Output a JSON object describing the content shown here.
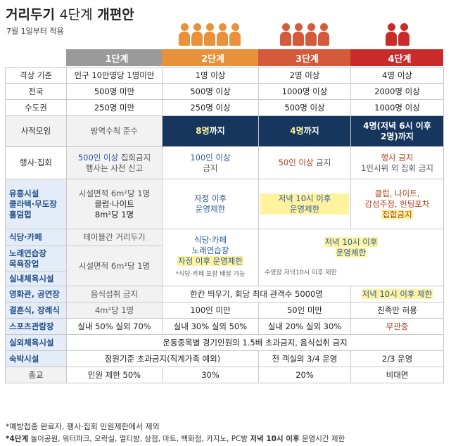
{
  "title": {
    "bold": "거리두기",
    "light": "4단계",
    "tail": "개편안"
  },
  "subtitle": "7월 1일부터 적용",
  "stages": [
    {
      "label": "1단계",
      "color": "#9a9a9a"
    },
    {
      "label": "2단계",
      "color": "#e8913a"
    },
    {
      "label": "3단계",
      "color": "#d35a3a"
    },
    {
      "label": "4단계",
      "color": "#c92b2b"
    }
  ],
  "icon_colors": {
    "stage2": "#e8913a",
    "stage3": "#d35a3a",
    "stage4": "#c92b2b"
  },
  "rows": {
    "r1": {
      "label": "격상 기준",
      "s1": "인구 10만명당 1명미만",
      "s2": "1명 이상",
      "s3": "2명 이상",
      "s4": "4명 이상"
    },
    "r2": {
      "label": "전국",
      "s1": "500명 미만",
      "s2": "500명 이상",
      "s3": "1000명 이상",
      "s4": "2000명 이상"
    },
    "r3": {
      "label": "수도권",
      "s1": "250명 미만",
      "s2": "250명 이상",
      "s3": "500명 이상",
      "s4": "1000명 이상"
    },
    "r4": {
      "label": "사적모임",
      "s1": "방역수칙 준수",
      "s2_a": "8명",
      "s2_b": "까지",
      "s3_a": "4명",
      "s3_b": "까지",
      "s4_l1": "4명(저녁 6시 이후",
      "s4_l2": "2명)까지"
    },
    "r5": {
      "label": "행사·집회",
      "s1_a": "500인 이상",
      "s1_b": " 집회금지",
      "s1_c": "행사는 사전 신고",
      "s2_a": "100인 이상",
      "s2_b": "금지",
      "s3_a": "50인 이상",
      "s3_b": " 금지",
      "s4_a": "행사 금지",
      "s4_b": "1인시위 외 집회 금지"
    },
    "r6": {
      "label_l1": "유흥시설",
      "label_l2": "콜라텍·무도장",
      "label_l3": "홀덤펍",
      "s1_l1": "시설면적 6m²당 1명",
      "s1_l2": "클럽·나이트",
      "s1_l3": "8m²당 1명",
      "s2_l1": "자정 이후",
      "s2_l2": "운영제한",
      "s3_l1": "저녁 10시 이후",
      "s3_l2": "운영제한",
      "s4_l1": "클럽, 나이트,",
      "s4_l2": "감성주점, 헌팅포차",
      "s4_l3": "집합금지"
    },
    "r7": {
      "label": "식당·카페",
      "s1": "테이블간 거리두기",
      "s2_l1": "식당·카페",
      "s2_l2": "노래연습장",
      "s2_l3": "자정 이후 운영제한",
      "s2_note": "*식당·카페 포장 배달 가능",
      "s34_l1": "저녁 10시 이후",
      "s34_l2": "운영제한",
      "s34_note": "수영장 저녁10시 이후 제한"
    },
    "r8": {
      "label_l1": "노래연습장",
      "label_l2": "목욕장업",
      "s1": "시설면적 6m²당 1명"
    },
    "r9": {
      "label": "실내체육시설"
    },
    "r10": {
      "label": "영화관, 공연장",
      "s1": "음식섭취 금지",
      "s23": "한칸 띄우기, 회당 최대 관객수 5000명",
      "s4": "저녁 10시 이후 제한"
    },
    "r11": {
      "label": "결혼식, 장례식",
      "s1": "4m²당 1명",
      "s2": "100인 미만",
      "s3": "50인 미만",
      "s4": "친족만 허용"
    },
    "r12": {
      "label": "스포츠관람장",
      "s1": "실내 50% 실외 70%",
      "s2": "실내 30% 실외 50%",
      "s3": "실내 20% 실외 30%",
      "s4": "무관중"
    },
    "r13": {
      "label": "실외체육시설",
      "s_all": "운동종목별 경기인원의 1.5배 초과금지, 음식섭취 금지"
    },
    "r14": {
      "label": "숙박시설",
      "s12": "정원기준 초과금지(직계가족 예외)",
      "s3": "전 객실의 3/4 운영",
      "s4": "2/3 운영"
    },
    "r15": {
      "label": "종교",
      "s1": "인원 제한 50%",
      "s2": "30%",
      "s3": "20%",
      "s4": "비대면"
    }
  },
  "footnotes": {
    "f1": "*예방접종 완료자, 행사·집회 인원제한에서 제외",
    "f2_a": "*4단계",
    "f2_b": " 놀이공원, 워터파크, 오락실, 멀티방, 상점, 마트, 백화점, 카지노, PC방 ",
    "f2_c": "저녁 10시 이후",
    "f2_d": " 운영시간 제한"
  }
}
